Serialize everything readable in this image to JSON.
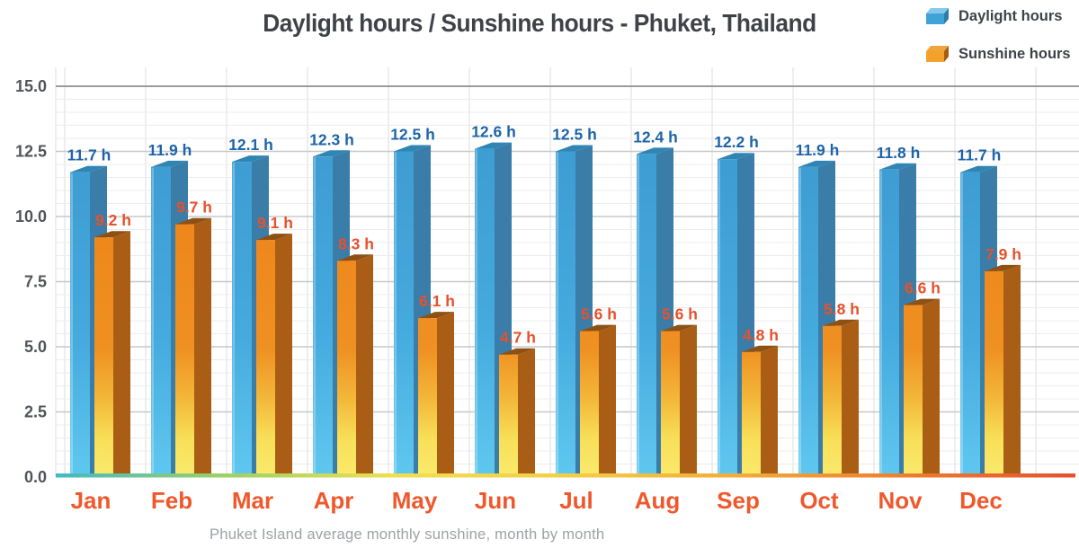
{
  "title": "Daylight hours / Sunshine hours - Phuket, Thailand",
  "caption": "Phuket Island average monthly sunshine, month by month",
  "legend": {
    "items": [
      {
        "label": "Daylight hours"
      },
      {
        "label": "Sunshine hours"
      }
    ]
  },
  "colors": {
    "title": "#3F4347",
    "caption": "#9EA2A5",
    "legend_text": "#3E4247",
    "month_label": "#F0582C",
    "y_tick": "#515559",
    "grid_minor": "#ECECEC",
    "grid_major": "#C7C8CA",
    "grid_top": "#9B9DA0",
    "grid_vertical": "#DCDDDE",
    "daylight": {
      "front_top": "#3E9DD3",
      "front_mid": "#45AADE",
      "front_bottom": "#5FC8EF",
      "side": "#3A7DA8",
      "top": "#2F85B4",
      "value_label": "#1C64A9",
      "swatch_front": "#3FA3D8",
      "swatch_top": "#85C8EA",
      "swatch_side": "#2E7CA8"
    },
    "sunshine": {
      "front_orange": "#EE861C",
      "front_orange2": "#EF9022",
      "front_amber": "#F3B83A",
      "front_yellow": "#F8DF58",
      "front_yellow2": "#FAEA6C",
      "side": "#AA5E15",
      "top": "#8F5113",
      "value_label": "#E8502B",
      "swatch_front": "#F3A12C",
      "swatch_top": "#F0A43C",
      "swatch_side": "#A55B14"
    },
    "baseline_gradient": [
      "#41B9C6",
      "#9CD164",
      "#F0DF4F",
      "#F3CE45",
      "#F2AC38",
      "#ED7E2E",
      "#E5512D"
    ]
  },
  "chart_data": {
    "type": "bar",
    "title": "Daylight hours / Sunshine hours - Phuket, Thailand",
    "caption": "Phuket Island average monthly sunshine, month by month",
    "categories": [
      "Jan",
      "Feb",
      "Mar",
      "Apr",
      "May",
      "Jun",
      "Jul",
      "Aug",
      "Sep",
      "Oct",
      "Nov",
      "Dec"
    ],
    "series": [
      {
        "name": "Daylight hours",
        "unit": "h",
        "values": [
          11.7,
          11.9,
          12.1,
          12.3,
          12.5,
          12.6,
          12.5,
          12.4,
          12.2,
          11.9,
          11.8,
          11.7
        ],
        "labels": [
          "11.7 h",
          "11.9 h",
          "12.1 h",
          "12.3 h",
          "12.5 h",
          "12.6 h",
          "12.5 h",
          "12.4 h",
          "12.2 h",
          "11.9 h",
          "11.8 h",
          "11.7 h"
        ]
      },
      {
        "name": "Sunshine hours",
        "unit": "h",
        "values": [
          9.2,
          9.7,
          9.1,
          8.3,
          6.1,
          4.7,
          5.6,
          5.6,
          4.8,
          5.8,
          6.6,
          7.9
        ],
        "labels": [
          "9.2 h",
          "9.7 h",
          "9.1 h",
          "8.3 h",
          "6.1 h",
          "4.7 h",
          "5.6 h",
          "5.6 h",
          "4.8 h",
          "5.8 h",
          "6.6 h",
          "7.9 h"
        ]
      }
    ],
    "ylim": [
      0,
      15
    ],
    "y_major_step": 2.5,
    "y_minor_step": 0.5,
    "y_tick_labels": [
      "15.0",
      "12.5",
      "10.0",
      "7.5",
      "5.0",
      "2.5",
      "0.0"
    ],
    "grid": true,
    "legend_position": "top-right",
    "bar_style": "3d"
  }
}
